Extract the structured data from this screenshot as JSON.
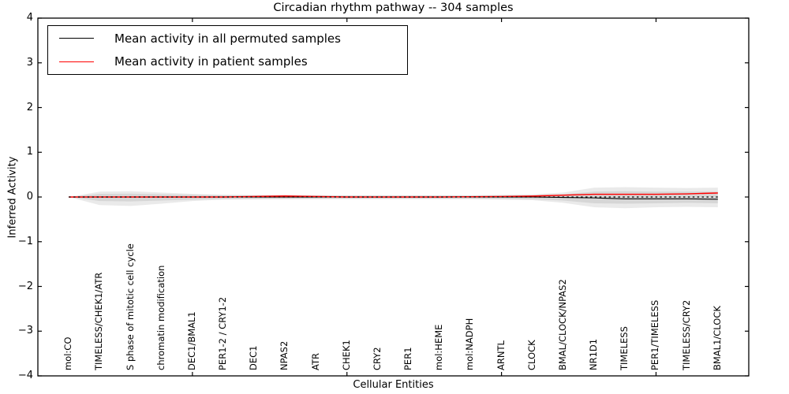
{
  "chart_data": {
    "type": "line",
    "title": "Circadian rhythm pathway -- 304 samples",
    "xlabel": "Cellular Entities",
    "ylabel": "Inferred Activity",
    "ylim": [
      -4,
      4
    ],
    "y_tick_labels": [
      "4",
      "3",
      "2",
      "1",
      "0",
      "−1",
      "−2",
      "−3",
      "−4"
    ],
    "y_tick_values": [
      4,
      3,
      2,
      1,
      0,
      -1,
      -2,
      -3,
      -4
    ],
    "x_pos_max": 23,
    "x_major_tick_positions": [
      5,
      10,
      15,
      20
    ],
    "grid": false,
    "legend_position": "upper left",
    "categories": [
      "mol:CO",
      "TIMELESS/CHEK1/ATR",
      "S phase of mitotic cell cycle",
      "chromatin modification",
      "DEC1/BMAL1",
      "PER1-2 / CRY1-2",
      "DEC1",
      "NPAS2",
      "ATR",
      "CHEK1",
      "CRY2",
      "PER1",
      "mol:HEME",
      "mol:NADPH",
      "ARNTL",
      "CLOCK",
      "BMAL/CLOCK/NPAS2",
      "NR1D1",
      "TIMELESS",
      "PER1/TIMELESS",
      "TIMELESS/CRY2",
      "BMAL1/CLOCK"
    ],
    "series": [
      {
        "name": "Mean activity in all permuted samples",
        "color": "#000000",
        "style": "solid",
        "values": [
          0,
          0,
          0,
          0,
          0,
          0,
          0,
          0,
          0,
          0,
          0,
          0,
          0,
          0,
          0,
          0,
          -0.01,
          -0.02,
          -0.04,
          -0.04,
          -0.04,
          -0.05
        ]
      },
      {
        "name": "Mean activity in patient samples",
        "color": "#ff0000",
        "style": "solid",
        "values": [
          0,
          0,
          0,
          0,
          0,
          0,
          0.01,
          0.02,
          0.01,
          0,
          0,
          0,
          0,
          0.005,
          0.01,
          0.02,
          0.04,
          0.06,
          0.06,
          0.06,
          0.07,
          0.09
        ]
      }
    ],
    "zero_reference_line": {
      "color": "#000000",
      "style": "dashed",
      "value": 0
    },
    "bands": [
      {
        "name": "permuted-spread-outer",
        "fill": "rgba(125,125,125,0.16)",
        "hi": [
          0,
          0.12,
          0.13,
          0.1,
          0.07,
          0.05,
          0.045,
          0.045,
          0.04,
          0.04,
          0.04,
          0.04,
          0.04,
          0.04,
          0.05,
          0.06,
          0.1,
          0.21,
          0.22,
          0.21,
          0.2,
          0.21
        ],
        "lo": [
          0,
          -0.18,
          -0.2,
          -0.15,
          -0.09,
          -0.06,
          -0.055,
          -0.05,
          -0.05,
          -0.05,
          -0.05,
          -0.05,
          -0.05,
          -0.05,
          -0.06,
          -0.07,
          -0.13,
          -0.23,
          -0.25,
          -0.23,
          -0.22,
          -0.23
        ]
      },
      {
        "name": "permuted-spread-inner",
        "fill": "rgba(125,125,125,0.18)",
        "hi": [
          0,
          0.07,
          0.075,
          0.06,
          0.05,
          0.04,
          0.035,
          0.035,
          0.03,
          0.03,
          0.03,
          0.03,
          0.03,
          0.03,
          0.035,
          0.04,
          0.06,
          0.12,
          0.13,
          0.12,
          0.12,
          0.12
        ],
        "lo": [
          0,
          -0.09,
          -0.1,
          -0.08,
          -0.06,
          -0.045,
          -0.04,
          -0.04,
          -0.035,
          -0.035,
          -0.035,
          -0.035,
          -0.035,
          -0.035,
          -0.04,
          -0.05,
          -0.08,
          -0.14,
          -0.15,
          -0.14,
          -0.13,
          -0.14
        ]
      },
      {
        "name": "patient-spread",
        "fill": "rgba(255,0,0,0.14)",
        "hi": [
          0,
          0.01,
          0.01,
          0.01,
          0.01,
          0.015,
          0.03,
          0.05,
          0.03,
          0.015,
          0.01,
          0.01,
          0.01,
          0.015,
          0.02,
          0.03,
          0.05,
          0.07,
          0.07,
          0.07,
          0.08,
          0.11
        ],
        "lo": [
          0,
          -0.01,
          -0.01,
          -0.01,
          -0.01,
          -0.01,
          -0.01,
          -0.02,
          -0.01,
          -0.01,
          -0.01,
          -0.01,
          -0.01,
          -0.005,
          0,
          0.01,
          0.03,
          0.05,
          0.05,
          0.05,
          0.06,
          0.07
        ]
      }
    ]
  }
}
